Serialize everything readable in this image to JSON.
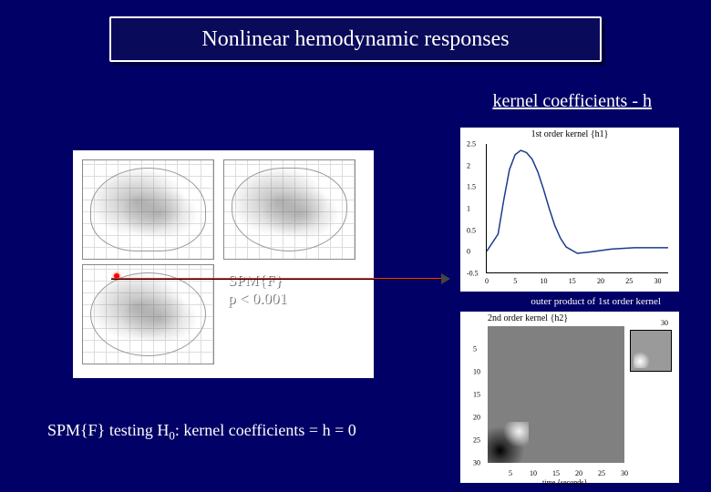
{
  "title": "Nonlinear hemodynamic responses",
  "kernel_label": "kernel coefficients - h",
  "spm_label_line1": "SPM{F}",
  "spm_label_line2": "p < 0.001",
  "bottom_text_pre": "SPM{F} testing H",
  "bottom_text_sub": "0",
  "bottom_text_post": ": kernel coefficients = h = 0",
  "outer_product_label": "outer product of 1st order kernel",
  "first_order": {
    "type": "line",
    "title": "1st order kernel {h1}",
    "xlim": [
      0,
      32
    ],
    "ylim": [
      -0.5,
      2.5
    ],
    "xticks": [
      0,
      5,
      10,
      15,
      20,
      25,
      30
    ],
    "yticks": [
      -0.5,
      0,
      0.5,
      1,
      1.5,
      2,
      2.5
    ],
    "line_color": "#1a3a8a",
    "line_width": 1.5,
    "background_color": "#ffffff",
    "curve_points": [
      [
        0,
        0.0
      ],
      [
        2,
        0.4
      ],
      [
        3,
        1.2
      ],
      [
        4,
        1.9
      ],
      [
        5,
        2.25
      ],
      [
        6,
        2.35
      ],
      [
        7,
        2.3
      ],
      [
        8,
        2.15
      ],
      [
        9,
        1.85
      ],
      [
        10,
        1.45
      ],
      [
        11,
        1.0
      ],
      [
        12,
        0.6
      ],
      [
        13,
        0.3
      ],
      [
        14,
        0.1
      ],
      [
        16,
        -0.05
      ],
      [
        18,
        -0.02
      ],
      [
        22,
        0.05
      ],
      [
        26,
        0.08
      ],
      [
        30,
        0.08
      ],
      [
        32,
        0.08
      ]
    ]
  },
  "second_order": {
    "type": "heatmap",
    "title": "2nd order kernel {h2}",
    "xlim": [
      0,
      30
    ],
    "ylim": [
      0,
      30
    ],
    "xticks": [
      5,
      10,
      15,
      20,
      25,
      30
    ],
    "yticks": [
      5,
      10,
      15,
      20,
      25,
      30
    ],
    "xlabel": "time {seconds}",
    "inset_label": "30",
    "base_gray": "#808080",
    "dark_peak": "#000000",
    "light_peak": "#ffffff",
    "background_color": "#ffffff"
  },
  "brain_panel": {
    "type": "infographic",
    "views": 3,
    "background_color": "#ffffff",
    "grid_color": "#dddddd",
    "outline_color": "#999999",
    "marker_color": "#ff0000"
  },
  "arrow": {
    "color_top": "#ff3030",
    "color_bottom": "#000000",
    "head_color": "#444444"
  },
  "colors": {
    "page_bg": "#000066",
    "banner_bg": "#0a0a5a",
    "banner_border": "#ffffff",
    "text": "#ffffff"
  }
}
